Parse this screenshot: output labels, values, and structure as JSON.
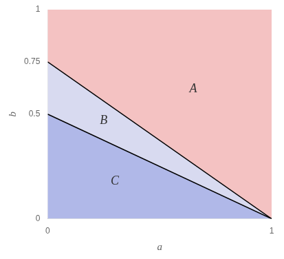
{
  "chart_data": {
    "type": "line",
    "xlabel": "a",
    "ylabel": "b",
    "xlim": [
      0,
      1
    ],
    "ylim": [
      0,
      1
    ],
    "xticks": [
      0,
      1
    ],
    "yticks": [
      0,
      0.5,
      0.75,
      1
    ],
    "grid": false,
    "series": [
      {
        "x": [
          0,
          1
        ],
        "values": [
          0.75,
          0
        ],
        "color": "black",
        "fill_above": "#f4c2c2"
      },
      {
        "x": [
          0,
          1
        ],
        "values": [
          0.5,
          0
        ],
        "color": "black",
        "fill_above": "#d8daf0",
        "fill_below": "#b0b8e8"
      }
    ],
    "annotations": [
      {
        "text": "A",
        "x": 0.65,
        "y": 0.62
      },
      {
        "text": "B",
        "x": 0.25,
        "y": 0.47
      },
      {
        "text": "C",
        "x": 0.3,
        "y": 0.18
      }
    ]
  }
}
